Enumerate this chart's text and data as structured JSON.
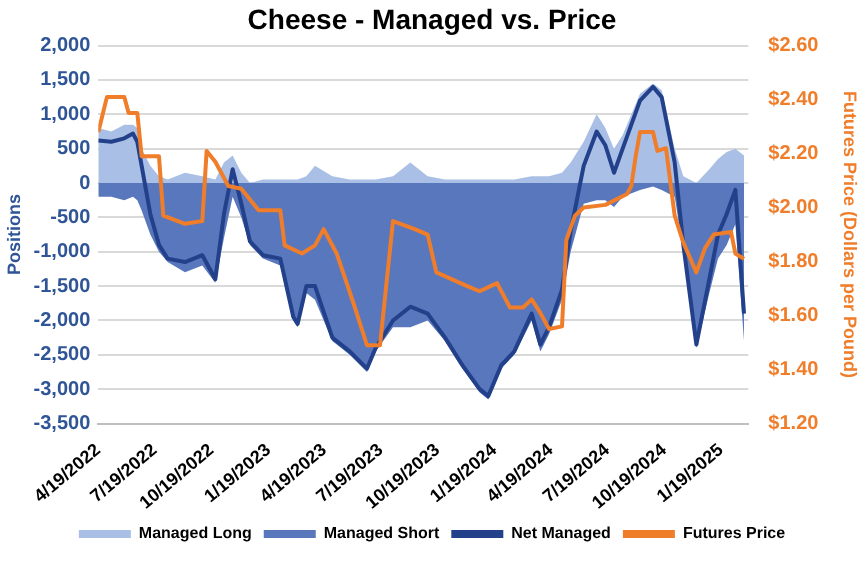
{
  "chart_data": {
    "type": "area",
    "title": "Cheese - Managed vs. Price",
    "ylabel": "Positions",
    "y2label": "Futures Price (Dollars per Pound)",
    "x": [
      "2022-04-19",
      "2022-05-10",
      "2022-05-31",
      "2022-06-14",
      "2022-06-21",
      "2022-06-28",
      "2022-07-12",
      "2022-07-26",
      "2022-08-09",
      "2022-09-06",
      "2022-10-04",
      "2022-10-25",
      "2022-11-08",
      "2022-11-22",
      "2022-12-06",
      "2022-12-20",
      "2023-01-10",
      "2023-02-07",
      "2023-02-28",
      "2023-03-07",
      "2023-03-21",
      "2023-04-04",
      "2023-05-02",
      "2023-05-30",
      "2023-06-27",
      "2023-07-11",
      "2023-08-08",
      "2023-09-05",
      "2023-10-03",
      "2023-10-31",
      "2023-11-28",
      "2023-12-26",
      "2024-01-09",
      "2024-01-30",
      "2024-02-20",
      "2024-03-19",
      "2024-04-02",
      "2024-04-16",
      "2024-05-07",
      "2024-05-21",
      "2024-06-11",
      "2024-07-02",
      "2024-07-16",
      "2024-07-30",
      "2024-08-13",
      "2024-09-10",
      "2024-10-01",
      "2024-10-15",
      "2024-11-05",
      "2024-11-19",
      "2024-12-10",
      "2024-12-31",
      "2025-01-14",
      "2025-01-28",
      "2025-02-11",
      "2025-02-25"
    ],
    "xlim": [
      "2022-04-19",
      "2025-03-04"
    ],
    "xticks": [
      {
        "value": "2022-04-19",
        "label": "4/19/2022"
      },
      {
        "value": "2022-07-19",
        "label": "7/19/2022"
      },
      {
        "value": "2022-10-19",
        "label": "10/19/2022"
      },
      {
        "value": "2023-01-19",
        "label": "1/19/2023"
      },
      {
        "value": "2023-04-19",
        "label": "4/19/2023"
      },
      {
        "value": "2023-07-19",
        "label": "7/19/2023"
      },
      {
        "value": "2023-10-19",
        "label": "10/19/2023"
      },
      {
        "value": "2024-01-19",
        "label": "1/19/2024"
      },
      {
        "value": "2024-04-19",
        "label": "4/19/2024"
      },
      {
        "value": "2024-07-19",
        "label": "7/19/2024"
      },
      {
        "value": "2024-10-19",
        "label": "10/19/2024"
      },
      {
        "value": "2025-01-19",
        "label": "1/19/2025"
      }
    ],
    "ylim": [
      -3500,
      2000
    ],
    "yticks": [
      {
        "value": -3500,
        "label": "-3,500"
      },
      {
        "value": -3000,
        "label": "-3,000"
      },
      {
        "value": -2500,
        "label": "-2,500"
      },
      {
        "value": -2000,
        "label": "-2,000"
      },
      {
        "value": -1500,
        "label": "-1,500"
      },
      {
        "value": -1000,
        "label": "-1,000"
      },
      -500,
      0,
      500,
      {
        "value": 1000,
        "label": "1,000"
      },
      {
        "value": 1500,
        "label": "1,500"
      },
      {
        "value": 2000,
        "label": "2,000"
      }
    ],
    "y2lim": [
      1.2,
      2.6
    ],
    "y2ticks": [
      {
        "value": 1.2,
        "label": "$1.20"
      },
      {
        "value": 1.4,
        "label": "$1.40"
      },
      {
        "value": 1.6,
        "label": "$1.60"
      },
      {
        "value": 1.8,
        "label": "$1.80"
      },
      {
        "value": 2.0,
        "label": "$2.00"
      },
      {
        "value": 2.2,
        "label": "$2.20"
      },
      {
        "value": 2.4,
        "label": "$2.40"
      },
      {
        "value": 2.6,
        "label": "$2.60"
      }
    ],
    "grid": "y",
    "legend": "bottom",
    "series": [
      {
        "name": "Managed Long",
        "color": "#a9bfe6",
        "values": [
          800,
          750,
          850,
          850,
          800,
          500,
          250,
          100,
          50,
          150,
          100,
          50,
          300,
          400,
          150,
          0,
          50,
          50,
          50,
          50,
          100,
          250,
          100,
          50,
          50,
          50,
          100,
          300,
          100,
          50,
          50,
          50,
          50,
          50,
          50,
          100,
          100,
          100,
          150,
          300,
          600,
          1000,
          800,
          500,
          700,
          1300,
          1450,
          1350,
          500,
          100,
          0,
          200,
          350,
          450,
          500,
          400
        ]
      },
      {
        "name": "Managed Short",
        "color": "#5877bd",
        "values": [
          -200,
          -200,
          -250,
          -200,
          -250,
          -400,
          -750,
          -1000,
          -1150,
          -1300,
          -1200,
          -1450,
          -800,
          -200,
          -500,
          -900,
          -1100,
          -1200,
          -2000,
          -2100,
          -1600,
          -1700,
          -2300,
          -2500,
          -2750,
          -2450,
          -2100,
          -2100,
          -2000,
          -2300,
          -2700,
          -3050,
          -3150,
          -2700,
          -2500,
          -2000,
          -2450,
          -2200,
          -1700,
          -1000,
          -300,
          -250,
          -250,
          -350,
          -200,
          -100,
          -50,
          -100,
          -200,
          -1000,
          -2400,
          -1600,
          -1100,
          -900,
          -600,
          -2300
        ]
      },
      {
        "name": "Net Managed",
        "type": "line",
        "color": "#23408a",
        "values": [
          620,
          600,
          650,
          720,
          600,
          250,
          -450,
          -900,
          -1100,
          -1150,
          -1050,
          -1400,
          -450,
          200,
          -300,
          -850,
          -1050,
          -1100,
          -1950,
          -2050,
          -1500,
          -1500,
          -2250,
          -2450,
          -2700,
          -2400,
          -2000,
          -1800,
          -1900,
          -2250,
          -2650,
          -3000,
          -3100,
          -2650,
          -2450,
          -1900,
          -2350,
          -2100,
          -1550,
          -700,
          250,
          750,
          550,
          150,
          500,
          1200,
          1400,
          1250,
          300,
          -900,
          -2350,
          -1400,
          -750,
          -450,
          -100,
          -1900
        ]
      },
      {
        "name": "Futures Price",
        "type": "line",
        "axis": "y2",
        "color": "#f07d2a",
        "x": [
          "2022-04-19",
          "2022-05-03",
          "2022-05-31",
          "2022-06-07",
          "2022-06-21",
          "2022-06-28",
          "2022-07-26",
          "2022-08-02",
          "2022-09-06",
          "2022-10-04",
          "2022-10-11",
          "2022-10-25",
          "2022-11-15",
          "2022-12-06",
          "2023-01-03",
          "2023-02-07",
          "2023-02-14",
          "2023-03-14",
          "2023-04-04",
          "2023-04-18",
          "2023-05-09",
          "2023-06-06",
          "2023-06-27",
          "2023-07-18",
          "2023-08-08",
          "2023-09-12",
          "2023-10-03",
          "2023-10-17",
          "2023-12-05",
          "2023-12-26",
          "2024-01-23",
          "2024-02-13",
          "2024-03-05",
          "2024-03-19",
          "2024-04-02",
          "2024-04-16",
          "2024-05-07",
          "2024-05-14",
          "2024-05-28",
          "2024-06-11",
          "2024-07-16",
          "2024-08-20",
          "2024-08-27",
          "2024-09-03",
          "2024-09-10",
          "2024-10-01",
          "2024-10-08",
          "2024-10-22",
          "2024-11-05",
          "2024-11-19",
          "2024-12-10",
          "2024-12-24",
          "2025-01-07",
          "2025-02-04",
          "2025-02-11",
          "2025-02-25"
        ],
        "values": [
          2.28,
          2.41,
          2.41,
          2.35,
          2.35,
          2.19,
          2.19,
          1.97,
          1.94,
          1.95,
          2.21,
          2.17,
          2.08,
          2.07,
          1.99,
          1.99,
          1.86,
          1.83,
          1.86,
          1.92,
          1.83,
          1.64,
          1.49,
          1.49,
          1.95,
          1.92,
          1.9,
          1.76,
          1.71,
          1.69,
          1.72,
          1.63,
          1.63,
          1.66,
          1.61,
          1.55,
          1.56,
          1.88,
          1.97,
          2.0,
          2.01,
          2.05,
          2.08,
          2.19,
          2.28,
          2.28,
          2.21,
          2.22,
          1.97,
          1.87,
          1.76,
          1.85,
          1.9,
          1.91,
          1.83,
          1.81
        ]
      }
    ]
  }
}
